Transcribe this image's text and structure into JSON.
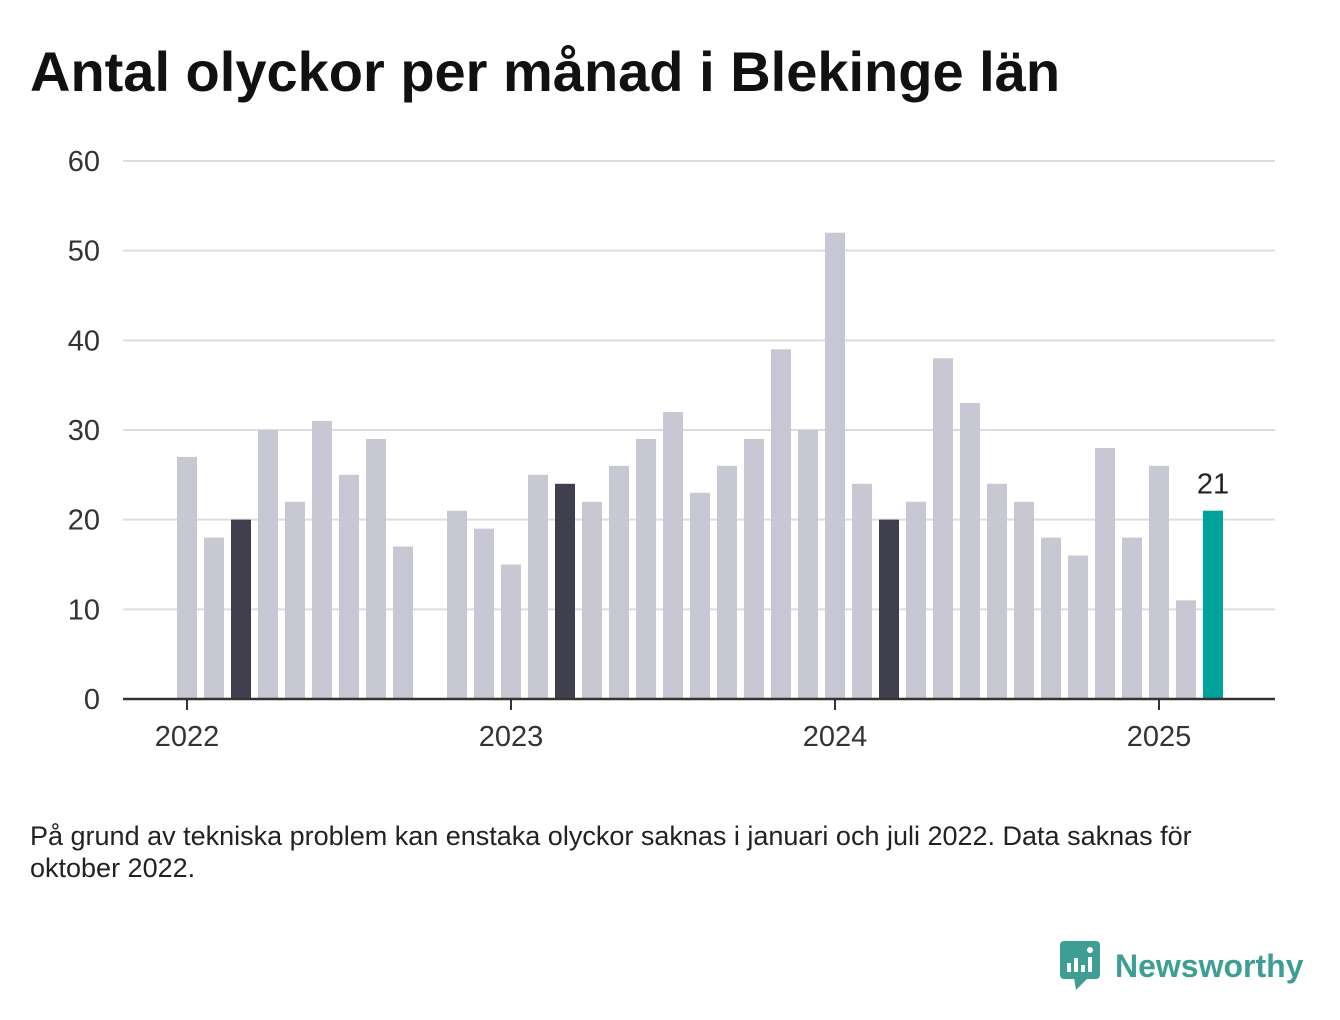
{
  "chart_data": {
    "type": "bar",
    "title": "Antal olyckor per månad i Blekinge län",
    "x": [
      "2022-01",
      "2022-02",
      "2022-03",
      "2022-04",
      "2022-05",
      "2022-06",
      "2022-07",
      "2022-08",
      "2022-09",
      "2022-10",
      "2022-11",
      "2022-12",
      "2023-01",
      "2023-02",
      "2023-03",
      "2023-04",
      "2023-05",
      "2023-06",
      "2023-07",
      "2023-08",
      "2023-09",
      "2023-10",
      "2023-11",
      "2023-12",
      "2024-01",
      "2024-02",
      "2024-03",
      "2024-04",
      "2024-05",
      "2024-06",
      "2024-07",
      "2024-08",
      "2024-09",
      "2024-10",
      "2024-11",
      "2024-12",
      "2025-01",
      "2025-02",
      "2025-03"
    ],
    "values": [
      27,
      18,
      20,
      30,
      22,
      31,
      25,
      29,
      17,
      null,
      21,
      19,
      15,
      25,
      24,
      22,
      26,
      29,
      32,
      23,
      26,
      29,
      39,
      30,
      52,
      24,
      20,
      22,
      38,
      33,
      24,
      22,
      18,
      16,
      28,
      18,
      26,
      11,
      21
    ],
    "highlighted": [
      "2022-03",
      "2023-03",
      "2024-03"
    ],
    "latest": "2025-03",
    "data_labels": [
      {
        "x": "2025-03",
        "value": 21
      }
    ],
    "ylim": [
      0,
      60
    ],
    "y_ticks": [
      0,
      10,
      20,
      30,
      40,
      50,
      60
    ],
    "x_ticks": [
      "2022",
      "2023",
      "2024",
      "2025"
    ],
    "grid": true,
    "colors": {
      "bar": "#c8c7d4",
      "highlighted": "#403f4d",
      "latest": "#00a39b",
      "grid": "#dddddd",
      "axis": "#333333"
    }
  },
  "footnote": "På grund av tekniska problem kan enstaka olyckor saknas i januari och juli 2022. Data saknas för oktober 2022.",
  "logo": {
    "text": "Newsworthy",
    "icon": "newsworthy-logo-icon",
    "color": "#3f9e94"
  }
}
